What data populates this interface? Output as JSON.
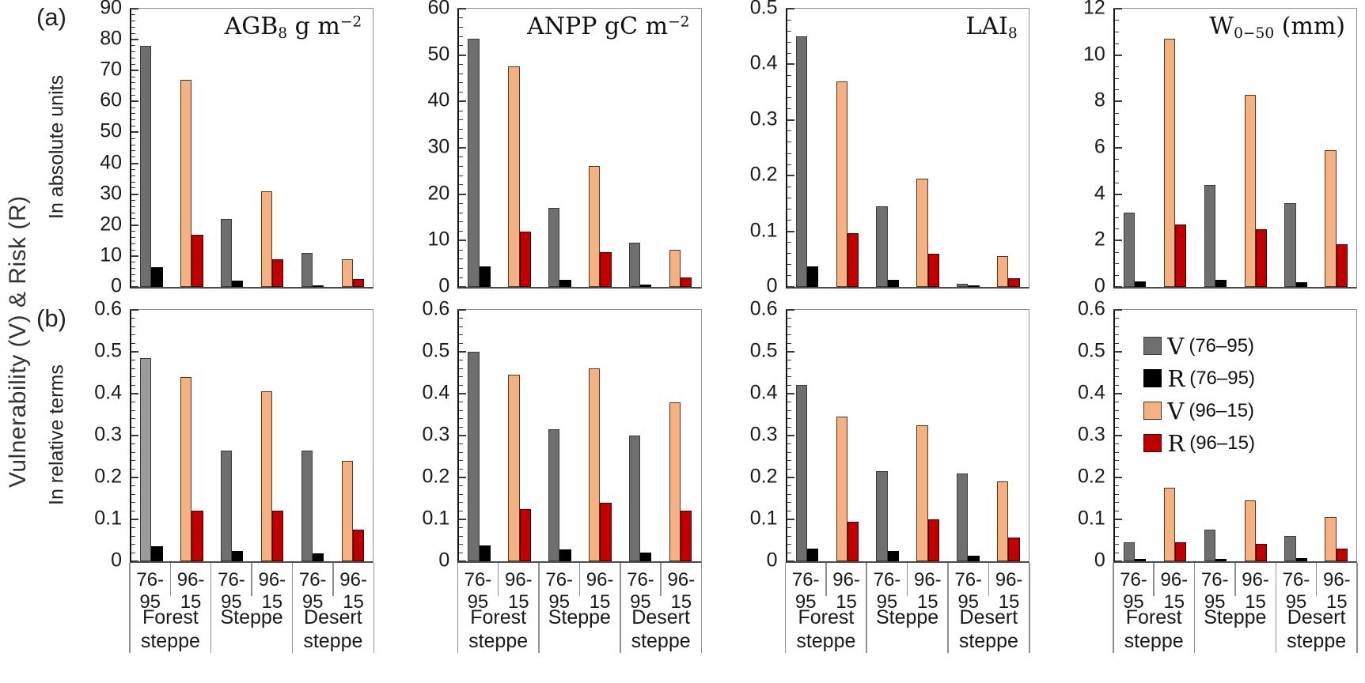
{
  "figure": {
    "y_axis_label": "Vulnerability  (V) & Risk (R)",
    "panel_a_label": "(a)",
    "panel_b_label": "(b)",
    "row_a_label": "In absolute units",
    "row_b_label": "In relative terms"
  },
  "colors": {
    "v76": {
      "fill": "#6F6F6F",
      "border": "#3A3A3A"
    },
    "v76_light": {
      "fill": "#9A9A9A",
      "border": "#3A3A3A"
    },
    "r76": {
      "fill": "#000000",
      "border": "#000000"
    },
    "v96": {
      "fill": "#F4B183",
      "border": "#5B3417"
    },
    "r96": {
      "fill": "#C00000",
      "border": "#400000"
    }
  },
  "legend": {
    "items": [
      {
        "letter": "V",
        "range": "(76–95)",
        "color_key": "v76"
      },
      {
        "letter": "R",
        "range": "(76–95)",
        "color_key": "r76"
      },
      {
        "letter": "V",
        "range": "(96–15)",
        "color_key": "v96"
      },
      {
        "letter": "R",
        "range": "(96–15)",
        "color_key": "r96"
      }
    ]
  },
  "x_axis": {
    "period_labels": [
      "76-95",
      "96-15"
    ],
    "group_labels": [
      [
        "Forest",
        "steppe"
      ],
      [
        "Steppe"
      ],
      [
        "Desert",
        "steppe"
      ]
    ]
  },
  "chart_data": [
    {
      "id": "agb-absolute",
      "type": "bar",
      "row": "a",
      "title_segments": [
        {
          "t": "AGB"
        },
        {
          "t": "8",
          "style": "sub"
        },
        {
          "t": " g m"
        },
        {
          "t": "−2",
          "style": "sup"
        }
      ],
      "categories": [
        "Forest steppe",
        "Steppe",
        "Desert steppe"
      ],
      "ylim": [
        0,
        90
      ],
      "ymajor": 10,
      "yminor_div": 5,
      "ytick_labels": [
        "0",
        "10",
        "20",
        "30",
        "40",
        "50",
        "60",
        "70",
        "80",
        "90"
      ],
      "series": [
        {
          "name": "V (76–95)",
          "color_key": "v76",
          "values": [
            78,
            22,
            11
          ]
        },
        {
          "name": "R (76–95)",
          "color_key": "r76",
          "values": [
            6.5,
            2,
            0.6
          ]
        },
        {
          "name": "V (96–15)",
          "color_key": "v96",
          "values": [
            67,
            31,
            9
          ]
        },
        {
          "name": "R (96–15)",
          "color_key": "r96",
          "values": [
            17,
            9,
            2.5
          ]
        }
      ]
    },
    {
      "id": "anpp-absolute",
      "type": "bar",
      "row": "a",
      "title_segments": [
        {
          "t": "ANPP gC m"
        },
        {
          "t": "−2",
          "style": "sup"
        }
      ],
      "categories": [
        "Forest steppe",
        "Steppe",
        "Desert steppe"
      ],
      "ylim": [
        0,
        60
      ],
      "ymajor": 10,
      "yminor_div": 5,
      "ytick_labels": [
        "0",
        "10",
        "20",
        "30",
        "40",
        "50",
        "60"
      ],
      "series": [
        {
          "name": "V (76–95)",
          "color_key": "v76",
          "values": [
            53.5,
            17,
            9.5
          ]
        },
        {
          "name": "R (76–95)",
          "color_key": "r76",
          "values": [
            4.5,
            1.5,
            0.5
          ]
        },
        {
          "name": "V (96–15)",
          "color_key": "v96",
          "values": [
            47.5,
            26,
            8
          ]
        },
        {
          "name": "R (96–15)",
          "color_key": "r96",
          "values": [
            12,
            7.5,
            2
          ]
        }
      ]
    },
    {
      "id": "lai-absolute",
      "type": "bar",
      "row": "a",
      "title_segments": [
        {
          "t": "LAI"
        },
        {
          "t": "8",
          "style": "sub"
        }
      ],
      "categories": [
        "Forest steppe",
        "Steppe",
        "Desert steppe"
      ],
      "ylim": [
        0,
        0.5
      ],
      "ymajor": 0.1,
      "yminor_div": 5,
      "ytick_labels": [
        "0",
        "0.1",
        "0.2",
        "0.3",
        "0.4",
        "0.5"
      ],
      "series": [
        {
          "name": "V (76–95)",
          "color_key": "v76",
          "values": [
            0.45,
            0.145,
            0.005
          ]
        },
        {
          "name": "R (76–95)",
          "color_key": "r76",
          "values": [
            0.037,
            0.013,
            0.003
          ]
        },
        {
          "name": "V (96–15)",
          "color_key": "v96",
          "values": [
            0.37,
            0.195,
            0.055
          ]
        },
        {
          "name": "R (96–15)",
          "color_key": "r96",
          "values": [
            0.096,
            0.06,
            0.015
          ]
        }
      ]
    },
    {
      "id": "w-absolute",
      "type": "bar",
      "row": "a",
      "title_segments": [
        {
          "t": "W"
        },
        {
          "t": "0−50",
          "style": "sub"
        },
        {
          "t": " (mm)"
        }
      ],
      "categories": [
        "Forest steppe",
        "Steppe",
        "Desert steppe"
      ],
      "ylim": [
        0,
        12
      ],
      "ymajor": 2,
      "yminor_div": 4,
      "ytick_labels": [
        "0",
        "2",
        "4",
        "6",
        "8",
        "10",
        "12"
      ],
      "series": [
        {
          "name": "V (76–95)",
          "color_key": "v76",
          "values": [
            3.2,
            4.4,
            3.6
          ]
        },
        {
          "name": "R (76–95)",
          "color_key": "r76",
          "values": [
            0.25,
            0.3,
            0.2
          ]
        },
        {
          "name": "V (96–15)",
          "color_key": "v96",
          "values": [
            10.7,
            8.3,
            5.9
          ]
        },
        {
          "name": "R (96–15)",
          "color_key": "r96",
          "values": [
            2.7,
            2.5,
            1.85
          ]
        }
      ]
    },
    {
      "id": "agb-relative",
      "type": "bar",
      "row": "b",
      "title_segments": [],
      "categories": [
        "Forest steppe",
        "Steppe",
        "Desert steppe"
      ],
      "ylim": [
        0,
        0.6
      ],
      "ymajor": 0.1,
      "yminor_div": 5,
      "ytick_labels": [
        "0",
        "0.1",
        "0.2",
        "0.3",
        "0.4",
        "0.5",
        "0.6"
      ],
      "series": [
        {
          "name": "V (76–95)",
          "color_key": "v76",
          "values": [
            0.485,
            0.265,
            0.265
          ]
        },
        {
          "name": "R (76–95)",
          "color_key": "r76",
          "values": [
            0.035,
            0.025,
            0.018
          ]
        },
        {
          "name": "V (96–15)",
          "color_key": "v96",
          "values": [
            0.44,
            0.405,
            0.24
          ]
        },
        {
          "name": "R (96–15)",
          "color_key": "r96",
          "values": [
            0.12,
            0.12,
            0.075
          ]
        }
      ],
      "overrides": [
        {
          "series_index": 0,
          "group_index": 0,
          "color_key": "v76_light"
        }
      ]
    },
    {
      "id": "anpp-relative",
      "type": "bar",
      "row": "b",
      "title_segments": [],
      "categories": [
        "Forest steppe",
        "Steppe",
        "Desert steppe"
      ],
      "ylim": [
        0,
        0.6
      ],
      "ymajor": 0.1,
      "yminor_div": 5,
      "ytick_labels": [
        "0",
        "0.1",
        "0.2",
        "0.3",
        "0.4",
        "0.5",
        "0.6"
      ],
      "series": [
        {
          "name": "V (76–95)",
          "color_key": "v76",
          "values": [
            0.5,
            0.315,
            0.3
          ]
        },
        {
          "name": "R (76–95)",
          "color_key": "r76",
          "values": [
            0.038,
            0.028,
            0.02
          ]
        },
        {
          "name": "V (96–15)",
          "color_key": "v96",
          "values": [
            0.445,
            0.46,
            0.38
          ]
        },
        {
          "name": "R (96–15)",
          "color_key": "r96",
          "values": [
            0.125,
            0.14,
            0.12
          ]
        }
      ]
    },
    {
      "id": "lai-relative",
      "type": "bar",
      "row": "b",
      "title_segments": [],
      "categories": [
        "Forest steppe",
        "Steppe",
        "Desert steppe"
      ],
      "ylim": [
        0,
        0.6
      ],
      "ymajor": 0.1,
      "yminor_div": 5,
      "ytick_labels": [
        "0",
        "0.1",
        "0.2",
        "0.3",
        "0.4",
        "0.5",
        "0.6"
      ],
      "series": [
        {
          "name": "V (76–95)",
          "color_key": "v76",
          "values": [
            0.42,
            0.215,
            0.21
          ]
        },
        {
          "name": "R (76–95)",
          "color_key": "r76",
          "values": [
            0.03,
            0.025,
            0.013
          ]
        },
        {
          "name": "V (96–15)",
          "color_key": "v96",
          "values": [
            0.345,
            0.325,
            0.19
          ]
        },
        {
          "name": "R (96–15)",
          "color_key": "r96",
          "values": [
            0.095,
            0.1,
            0.057
          ]
        }
      ]
    },
    {
      "id": "w-relative",
      "type": "bar",
      "row": "b",
      "title_segments": [],
      "categories": [
        "Forest steppe",
        "Steppe",
        "Desert steppe"
      ],
      "ylim": [
        0,
        0.6
      ],
      "ymajor": 0.1,
      "yminor_div": 5,
      "ytick_labels": [
        "0",
        "0.1",
        "0.2",
        "0.3",
        "0.4",
        "0.5",
        "0.6"
      ],
      "show_legend": true,
      "series": [
        {
          "name": "V (76–95)",
          "color_key": "v76",
          "values": [
            0.045,
            0.075,
            0.06
          ]
        },
        {
          "name": "R (76–95)",
          "color_key": "r76",
          "values": [
            0.005,
            0.005,
            0.008
          ]
        },
        {
          "name": "V (96–15)",
          "color_key": "v96",
          "values": [
            0.175,
            0.145,
            0.105
          ]
        },
        {
          "name": "R (96–15)",
          "color_key": "r96",
          "values": [
            0.045,
            0.042,
            0.03
          ]
        }
      ]
    }
  ]
}
